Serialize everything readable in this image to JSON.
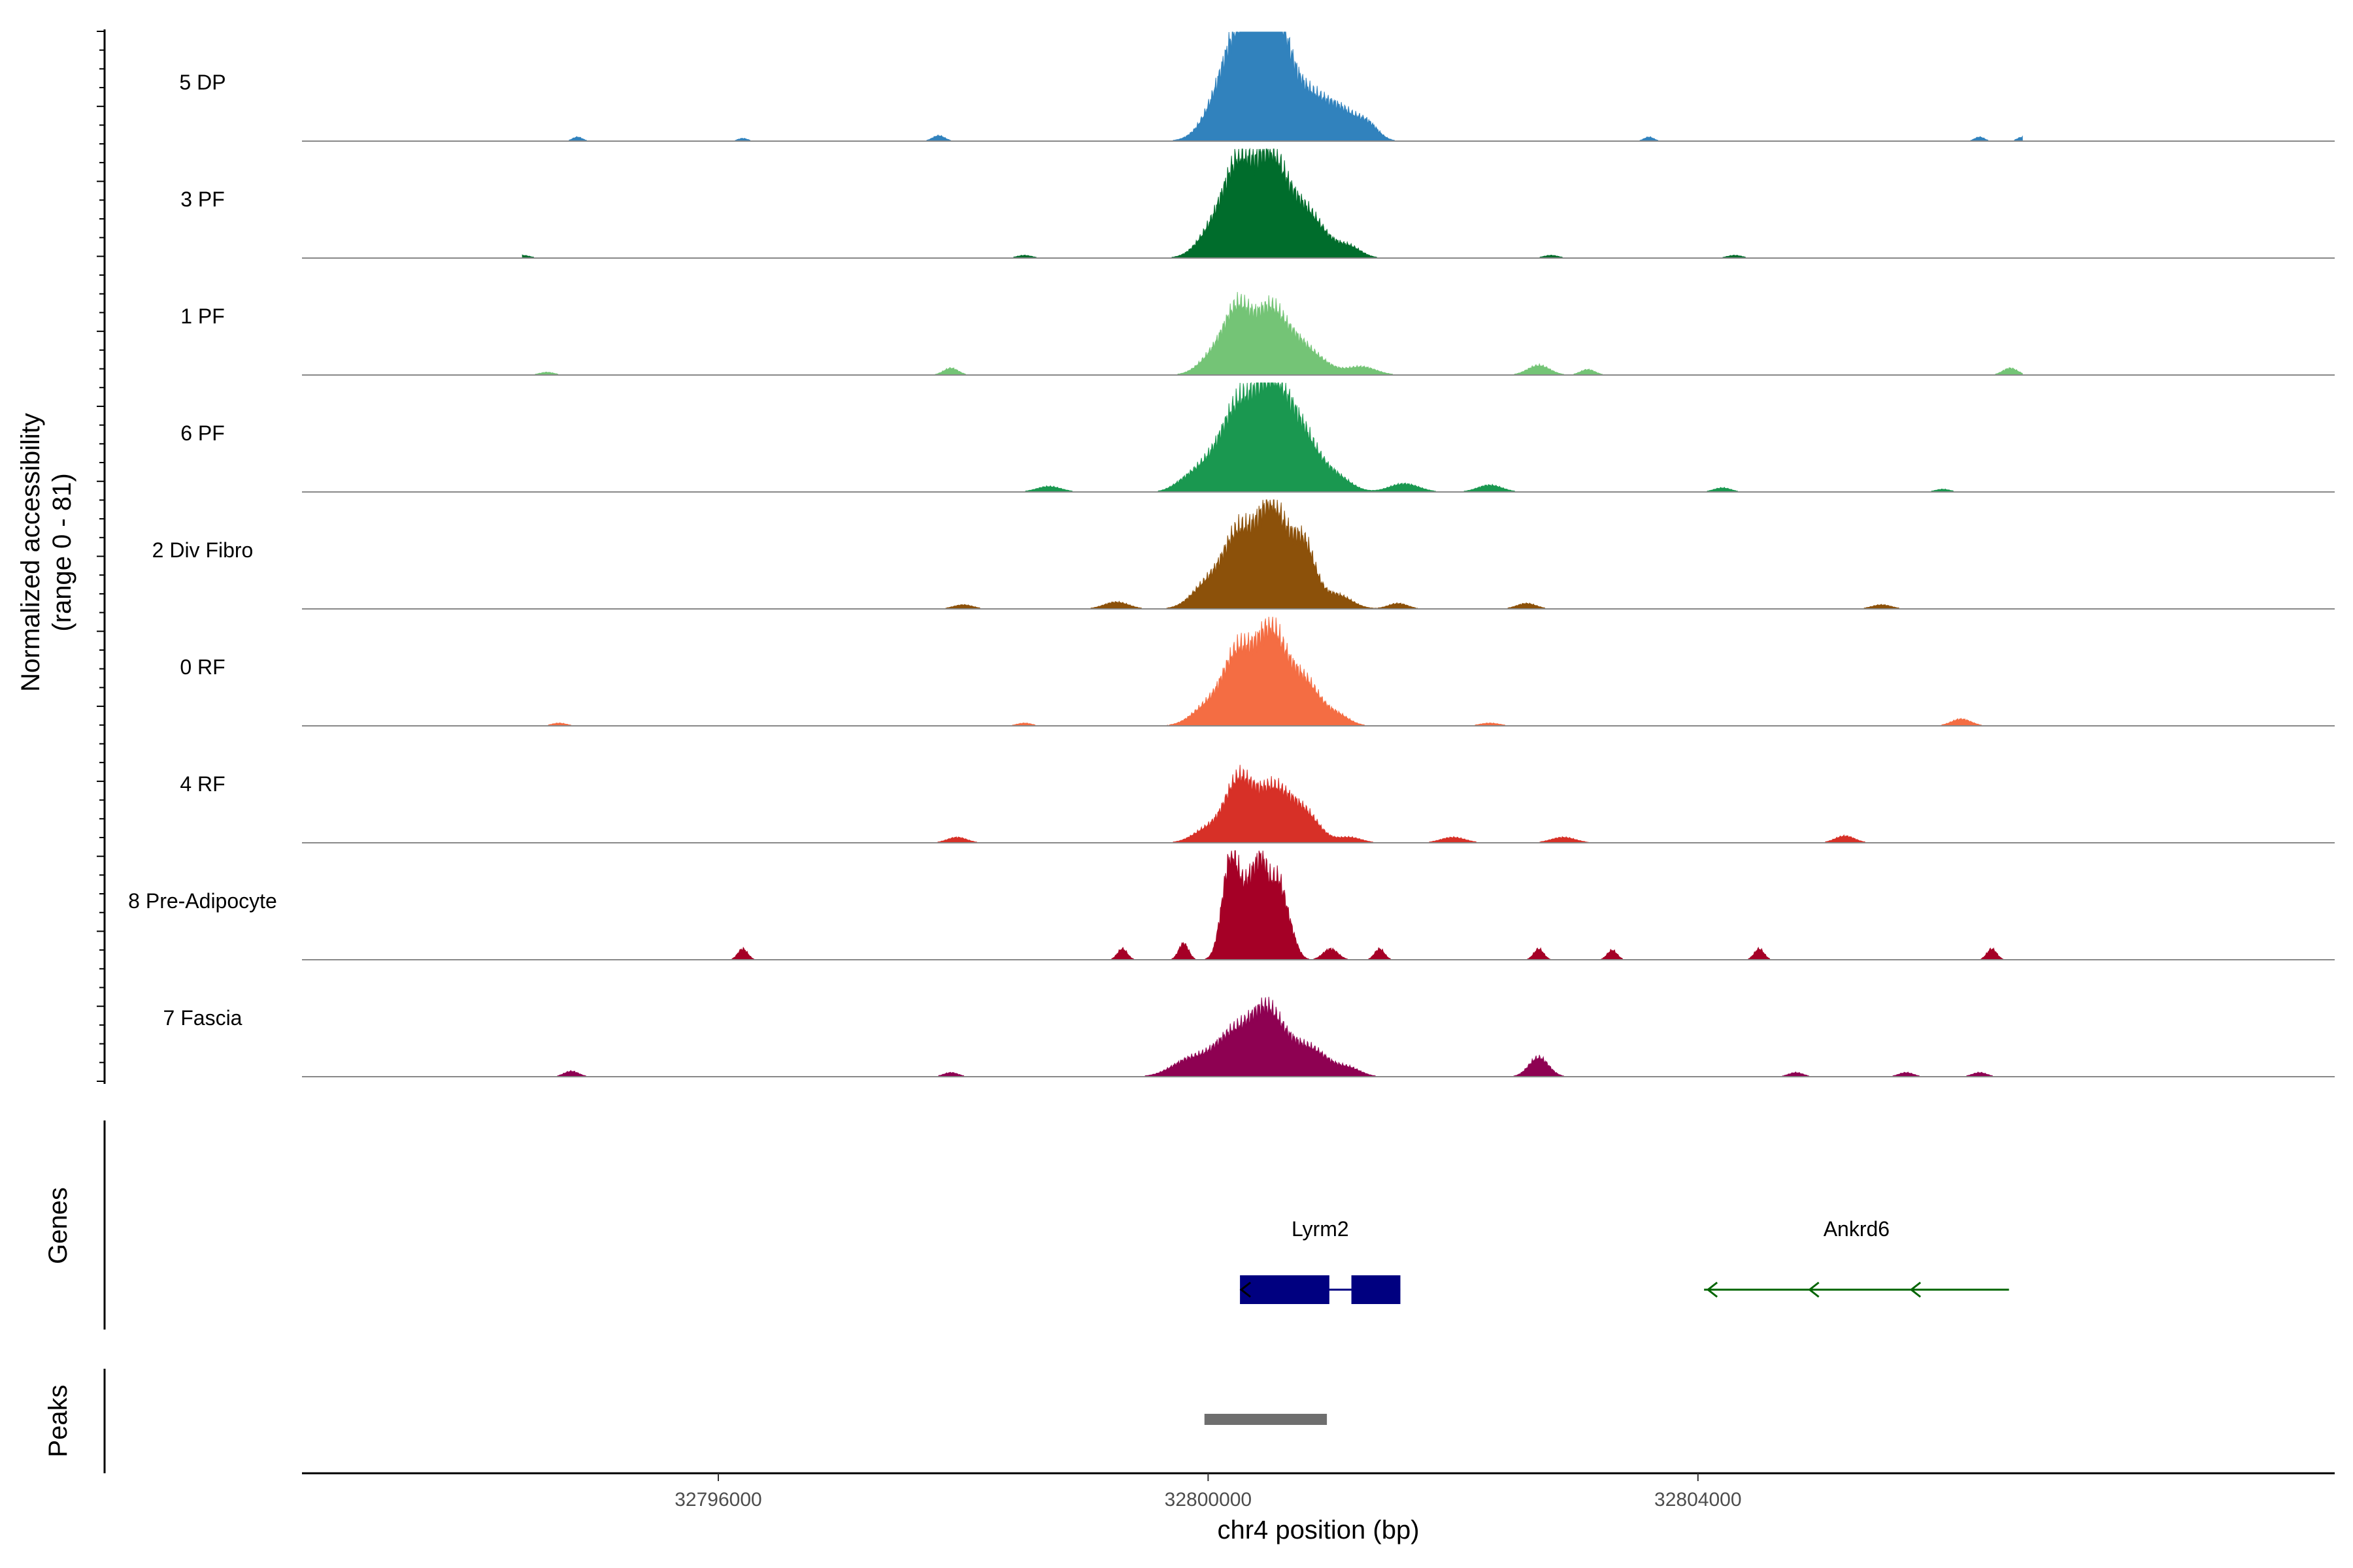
{
  "chart_data": {
    "type": "area",
    "title": "",
    "xlabel": "chr4 position (bp)",
    "ylabel_line1": "Normalized accessibility",
    "ylabel_line2": "(range 0 - 81)",
    "xlim": [
      32792600,
      32809200
    ],
    "ylim": [
      0,
      81
    ],
    "x_ticks": [
      {
        "value": 32796000,
        "label": "32796000"
      },
      {
        "value": 32800000,
        "label": "32800000"
      },
      {
        "value": 32804000,
        "label": "32804000"
      }
    ],
    "series": [
      {
        "name": "5 DP",
        "color": "#3182BD",
        "peaks": [
          [
            32800280,
            68,
            130
          ],
          [
            32800480,
            72,
            110
          ],
          [
            32800620,
            50,
            150
          ],
          [
            32800100,
            25,
            140
          ],
          [
            32800900,
            22,
            120
          ],
          [
            32801100,
            18,
            110
          ],
          [
            32801300,
            12,
            90
          ],
          [
            32794850,
            3,
            40
          ],
          [
            32796200,
            2,
            40
          ],
          [
            32797800,
            4,
            50
          ],
          [
            32803600,
            3,
            40
          ],
          [
            32806300,
            3,
            40
          ],
          [
            32806650,
            3,
            40
          ]
        ]
      },
      {
        "name": "3 PF",
        "color": "#006D2C",
        "peaks": [
          [
            32800260,
            64,
            120
          ],
          [
            32800500,
            58,
            110
          ],
          [
            32800700,
            35,
            140
          ],
          [
            32800050,
            20,
            130
          ],
          [
            32800900,
            14,
            120
          ],
          [
            32801150,
            8,
            100
          ],
          [
            32794400,
            2,
            60
          ],
          [
            32798500,
            2,
            60
          ],
          [
            32802800,
            2,
            60
          ],
          [
            32804300,
            2,
            60
          ]
        ]
      },
      {
        "name": "1 PF",
        "color": "#74C476",
        "peaks": [
          [
            32800250,
            46,
            110
          ],
          [
            32800500,
            42,
            110
          ],
          [
            32800700,
            22,
            120
          ],
          [
            32800050,
            14,
            120
          ],
          [
            32800900,
            9,
            120
          ],
          [
            32801250,
            6,
            120
          ],
          [
            32797900,
            5,
            60
          ],
          [
            32802700,
            7,
            90
          ],
          [
            32803100,
            4,
            60
          ],
          [
            32806550,
            5,
            60
          ],
          [
            32794600,
            2,
            60
          ]
        ]
      },
      {
        "name": "6 PF",
        "color": "#1A9850",
        "peaks": [
          [
            32800250,
            58,
            130
          ],
          [
            32800500,
            65,
            120
          ],
          [
            32800700,
            40,
            130
          ],
          [
            32800000,
            18,
            130
          ],
          [
            32800850,
            14,
            120
          ],
          [
            32801050,
            10,
            120
          ],
          [
            32801600,
            6,
            120
          ],
          [
            32802300,
            5,
            100
          ],
          [
            32798700,
            4,
            100
          ],
          [
            32799800,
            5,
            100
          ],
          [
            32804200,
            3,
            70
          ],
          [
            32806000,
            2,
            60
          ]
        ]
      },
      {
        "name": "2 Div Fibro",
        "color": "#8C510A",
        "peaks": [
          [
            32800250,
            52,
            120
          ],
          [
            32800500,
            62,
            110
          ],
          [
            32800700,
            34,
            130
          ],
          [
            32800000,
            18,
            130
          ],
          [
            32800800,
            22,
            80
          ],
          [
            32801050,
            10,
            120
          ],
          [
            32801550,
            4,
            80
          ],
          [
            32799250,
            5,
            100
          ],
          [
            32802600,
            4,
            80
          ],
          [
            32805500,
            3,
            80
          ],
          [
            32798000,
            3,
            80
          ]
        ]
      },
      {
        "name": "0 RF",
        "color": "#F46D43",
        "peaks": [
          [
            32800250,
            52,
            120
          ],
          [
            32800500,
            58,
            110
          ],
          [
            32800700,
            30,
            130
          ],
          [
            32800000,
            14,
            130
          ],
          [
            32800850,
            13,
            100
          ],
          [
            32801050,
            8,
            100
          ],
          [
            32806150,
            5,
            80
          ],
          [
            32802300,
            2,
            80
          ],
          [
            32794700,
            2,
            60
          ],
          [
            32798500,
            2,
            60
          ]
        ]
      },
      {
        "name": "4 RF",
        "color": "#D73027",
        "peaks": [
          [
            32800250,
            44,
            110
          ],
          [
            32800500,
            32,
            120
          ],
          [
            32800700,
            22,
            130
          ],
          [
            32800000,
            10,
            120
          ],
          [
            32800850,
            8,
            100
          ],
          [
            32801150,
            4,
            100
          ],
          [
            32802000,
            4,
            100
          ],
          [
            32802900,
            4,
            100
          ],
          [
            32797950,
            4,
            80
          ],
          [
            32805200,
            5,
            80
          ]
        ]
      },
      {
        "name": "8 Pre-Adipocyte",
        "color": "#A50026",
        "peaks": [
          [
            32800220,
            58,
            70
          ],
          [
            32800350,
            42,
            50
          ],
          [
            32800440,
            60,
            50
          ],
          [
            32800560,
            52,
            60
          ],
          [
            32800150,
            30,
            60
          ],
          [
            32800660,
            20,
            60
          ],
          [
            32796200,
            8,
            40
          ],
          [
            32799800,
            12,
            40
          ],
          [
            32799300,
            8,
            40
          ],
          [
            32801000,
            8,
            60
          ],
          [
            32801400,
            8,
            40
          ],
          [
            32802700,
            8,
            40
          ],
          [
            32806400,
            8,
            40
          ],
          [
            32804500,
            8,
            40
          ],
          [
            32803300,
            7,
            40
          ]
        ]
      },
      {
        "name": "7 Fascia",
        "color": "#8E0152",
        "peaks": [
          [
            32800220,
            32,
            160
          ],
          [
            32800480,
            38,
            120
          ],
          [
            32800700,
            18,
            140
          ],
          [
            32799850,
            12,
            150
          ],
          [
            32800900,
            12,
            120
          ],
          [
            32801150,
            6,
            100
          ],
          [
            32802700,
            14,
            80
          ],
          [
            32794800,
            4,
            60
          ],
          [
            32797900,
            3,
            60
          ],
          [
            32804800,
            3,
            60
          ],
          [
            32805700,
            3,
            60
          ],
          [
            32806300,
            3,
            60
          ]
        ]
      }
    ],
    "genes": [
      {
        "name": "Lyrm2",
        "start": 32800260,
        "end": 32801570,
        "strand": "-",
        "color": "#000080",
        "exons": [
          [
            32800260,
            32800990
          ],
          [
            32801170,
            32801570
          ]
        ]
      },
      {
        "name": "Ankrd6",
        "start": 32804050,
        "end": 32806540,
        "strand": "-",
        "color": "#006400",
        "exons": []
      }
    ],
    "peak_regions": [
      {
        "start": 32799970,
        "end": 32800970,
        "color": "#6E6E6E"
      }
    ],
    "panel_titles": {
      "genes": "Genes",
      "peaks": "Peaks"
    }
  }
}
